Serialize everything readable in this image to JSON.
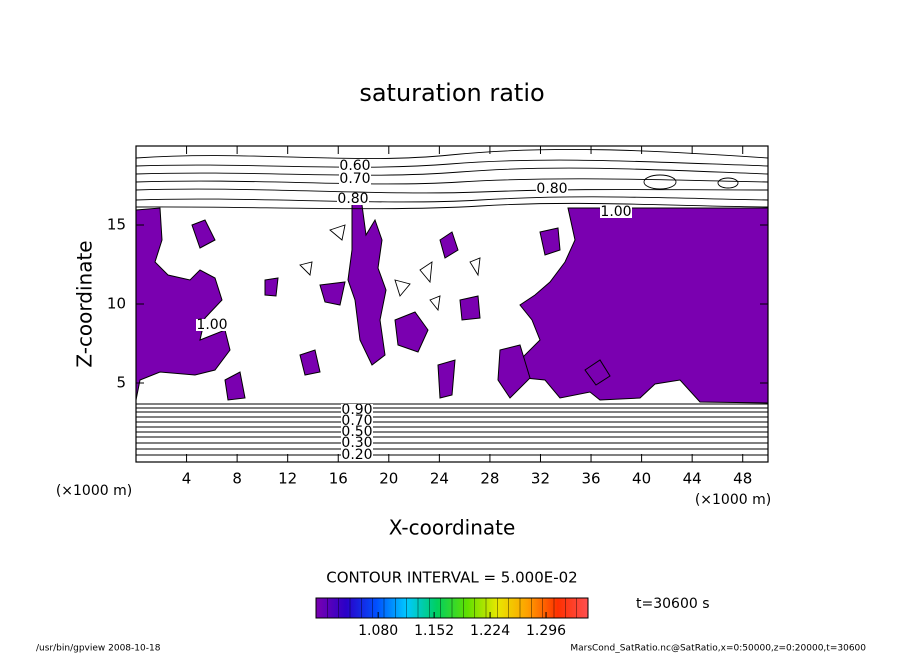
{
  "chart_data": {
    "type": "contour",
    "title": "saturation ratio",
    "xlabel": "X-coordinate",
    "ylabel": "Z-coordinate",
    "x_unit_label": "(×1000 m)",
    "xlim": [
      0,
      50
    ],
    "ylim": [
      0,
      20
    ],
    "xticks": [
      4,
      8,
      12,
      16,
      20,
      24,
      28,
      32,
      36,
      40,
      44,
      48
    ],
    "yticks": [
      5,
      10,
      15
    ],
    "fill_color": "#7a00b0",
    "contour_labels": [
      "0.60",
      "0.70",
      "0.80",
      "0.80",
      "1.00",
      "1.00",
      "0.90",
      "0.70",
      "0.50",
      "0.30",
      "0.20"
    ],
    "contour_interval": "CONTOUR INTERVAL = 5.000E-02",
    "time_label": "t=30600 s",
    "colorbar": {
      "clim": [
        1.0,
        1.35
      ],
      "ticks": [
        {
          "value": 1.08,
          "label": "1.080"
        },
        {
          "value": 1.152,
          "label": "1.152"
        },
        {
          "value": 1.224,
          "label": "1.224"
        },
        {
          "value": 1.296,
          "label": "1.296"
        }
      ],
      "colormap": [
        "#7a00b0",
        "#2a00c8",
        "#0050ff",
        "#00c8ff",
        "#00d060",
        "#60e000",
        "#e8e800",
        "#ffa000",
        "#ff3000",
        "#ff5050"
      ]
    },
    "footer_left": "/usr/bin/gpview   2008-10-18",
    "footer_right": "MarsCond_SatRatio.nc@SatRatio,x=0:50000,z=0:20000,t=30600"
  }
}
